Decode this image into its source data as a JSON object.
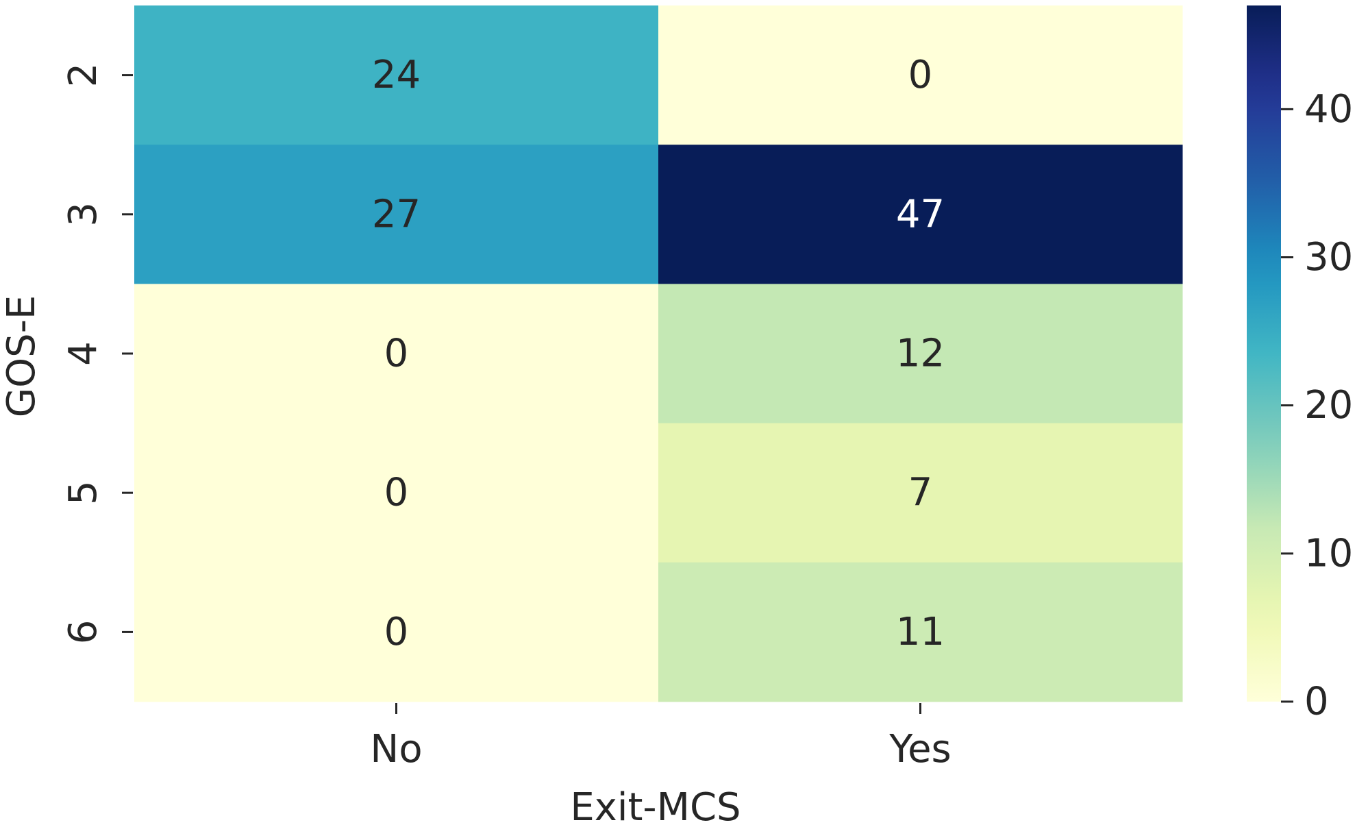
{
  "chart_data": {
    "type": "heatmap",
    "title": "",
    "xlabel": "Exit-MCS",
    "ylabel": "GOS-E",
    "x_categories": [
      "No",
      "Yes"
    ],
    "y_categories": [
      "2",
      "3",
      "4",
      "5",
      "6"
    ],
    "values": [
      [
        24,
        0
      ],
      [
        27,
        47
      ],
      [
        0,
        12
      ],
      [
        0,
        7
      ],
      [
        0,
        11
      ]
    ],
    "colormap": "YlGnBu",
    "color_range": [
      0,
      47
    ],
    "colorbar_ticks": [
      0,
      10,
      20,
      30,
      40
    ],
    "annotate": true,
    "grid": false,
    "colorbar_position": "right"
  }
}
